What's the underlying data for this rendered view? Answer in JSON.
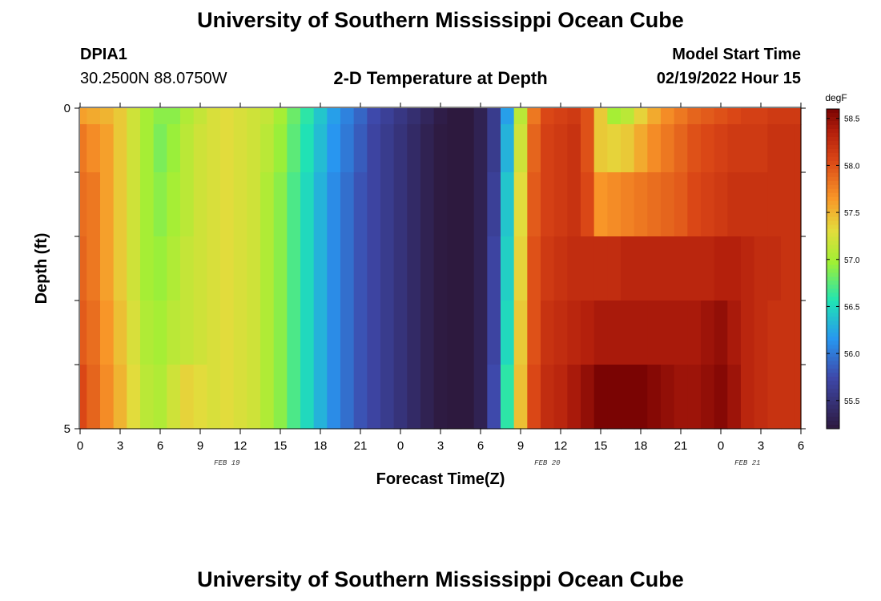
{
  "header": {
    "title": "University of Southern Mississippi Ocean Cube",
    "station_id": "DPIA1",
    "coordinates": "30.2500N  88.0750W",
    "plot_title": "2-D Temperature at Depth",
    "model_label": "Model Start Time",
    "model_time": "02/19/2022 Hour 15",
    "footer_title": "University of Southern Mississippi Ocean Cube"
  },
  "chart_data": {
    "type": "heatmap",
    "title": "2-D Temperature at Depth",
    "xlabel": "Forecast Time(Z)",
    "ylabel": "Depth (ft)",
    "x_ticks": [
      "0",
      "3",
      "6",
      "9",
      "12",
      "15",
      "18",
      "21",
      "0",
      "3",
      "6",
      "9",
      "12",
      "15",
      "18",
      "21",
      "0",
      "3",
      "6"
    ],
    "y_ticks": [
      "0",
      "5"
    ],
    "ylim": [
      0,
      5
    ],
    "date_labels": [
      {
        "label": "FEB 19",
        "at_hour": 11
      },
      {
        "label": "FEB 20",
        "at_hour": 35
      },
      {
        "label": "FEB 21",
        "at_hour": 50
      }
    ],
    "colorbar": {
      "unit": "degF",
      "range": [
        55.2,
        58.6
      ],
      "ticks": [
        "58.5",
        "58.0",
        "57.5",
        "57.0",
        "56.5",
        "56.0",
        "55.5"
      ],
      "tick_values": [
        58.5,
        58.0,
        57.5,
        57.0,
        56.5,
        56.0,
        55.5
      ]
    },
    "depth_levels_ft": [
      0.0,
      0.5,
      1.5,
      2.5,
      3.5,
      4.5
    ],
    "hours": [
      0,
      1,
      2,
      3,
      4,
      5,
      6,
      7,
      8,
      9,
      10,
      11,
      12,
      13,
      14,
      15,
      16,
      17,
      18,
      19,
      20,
      21,
      22,
      23,
      24,
      25,
      26,
      27,
      28,
      29,
      30,
      31,
      32,
      33,
      34,
      35,
      36,
      37,
      38,
      39,
      40,
      41,
      42,
      43,
      44,
      45,
      46,
      47,
      48,
      49,
      50,
      51,
      52,
      53,
      54
    ],
    "values": [
      [
        57.6,
        57.55,
        57.5,
        57.4,
        57.2,
        57.0,
        56.9,
        56.9,
        57.05,
        57.15,
        57.25,
        57.3,
        57.25,
        57.2,
        57.15,
        57.0,
        56.8,
        56.6,
        56.4,
        56.2,
        56.05,
        55.9,
        55.75,
        55.65,
        55.55,
        55.45,
        55.35,
        55.25,
        55.2,
        55.2,
        55.3,
        55.6,
        56.2,
        57.1,
        57.8,
        58.05,
        58.1,
        58.15,
        58.0,
        57.4,
        57.0,
        57.1,
        57.35,
        57.55,
        57.7,
        57.8,
        57.9,
        57.95,
        58.0,
        58.05,
        58.1,
        58.1,
        58.15,
        58.15,
        58.15
      ],
      [
        57.8,
        57.7,
        57.6,
        57.4,
        57.2,
        57.0,
        56.85,
        56.95,
        57.1,
        57.2,
        57.25,
        57.3,
        57.25,
        57.2,
        57.1,
        56.95,
        56.75,
        56.55,
        56.35,
        56.15,
        56.0,
        55.85,
        55.7,
        55.6,
        55.5,
        55.4,
        55.3,
        55.22,
        55.2,
        55.2,
        55.3,
        55.6,
        56.3,
        57.2,
        57.9,
        58.1,
        58.15,
        58.2,
        58.0,
        57.4,
        57.35,
        57.4,
        57.55,
        57.7,
        57.8,
        57.9,
        58.0,
        58.05,
        58.1,
        58.15,
        58.15,
        58.15,
        58.2,
        58.2,
        58.2
      ],
      [
        57.85,
        57.8,
        57.6,
        57.4,
        57.2,
        57.0,
        56.9,
        57.0,
        57.1,
        57.2,
        57.25,
        57.3,
        57.25,
        57.2,
        57.05,
        56.9,
        56.7,
        56.5,
        56.3,
        56.1,
        55.95,
        55.8,
        55.7,
        55.6,
        55.5,
        55.4,
        55.3,
        55.22,
        55.2,
        55.2,
        55.3,
        55.65,
        56.4,
        57.3,
        57.95,
        58.1,
        58.15,
        58.2,
        58.05,
        57.65,
        57.7,
        57.75,
        57.8,
        57.85,
        57.9,
        57.95,
        58.05,
        58.1,
        58.15,
        58.2,
        58.2,
        58.2,
        58.2,
        58.2,
        58.2
      ],
      [
        57.9,
        57.8,
        57.6,
        57.4,
        57.2,
        57.0,
        56.95,
        57.05,
        57.15,
        57.2,
        57.25,
        57.3,
        57.25,
        57.2,
        57.05,
        56.9,
        56.7,
        56.5,
        56.3,
        56.1,
        55.95,
        55.8,
        55.7,
        55.6,
        55.5,
        55.4,
        55.3,
        55.22,
        55.2,
        55.2,
        55.3,
        55.7,
        56.45,
        57.35,
        58.0,
        58.15,
        58.2,
        58.25,
        58.25,
        58.25,
        58.25,
        58.3,
        58.3,
        58.3,
        58.3,
        58.3,
        58.3,
        58.3,
        58.35,
        58.35,
        58.3,
        58.25,
        58.25,
        58.2,
        58.2
      ],
      [
        57.95,
        57.85,
        57.65,
        57.45,
        57.25,
        57.05,
        57.0,
        57.1,
        57.15,
        57.2,
        57.25,
        57.3,
        57.25,
        57.2,
        57.05,
        56.9,
        56.7,
        56.5,
        56.3,
        56.1,
        55.95,
        55.8,
        55.7,
        55.6,
        55.5,
        55.4,
        55.3,
        55.22,
        55.2,
        55.2,
        55.3,
        55.7,
        56.5,
        57.4,
        58.0,
        58.2,
        58.25,
        58.3,
        58.35,
        58.4,
        58.4,
        58.4,
        58.4,
        58.4,
        58.4,
        58.4,
        58.4,
        58.45,
        58.5,
        58.4,
        58.3,
        58.25,
        58.2,
        58.2,
        58.2
      ],
      [
        58.05,
        57.9,
        57.7,
        57.5,
        57.3,
        57.1,
        57.05,
        57.2,
        57.35,
        57.3,
        57.25,
        57.3,
        57.25,
        57.2,
        57.05,
        56.9,
        56.7,
        56.5,
        56.3,
        56.1,
        55.95,
        55.8,
        55.7,
        55.6,
        55.5,
        55.4,
        55.3,
        55.22,
        55.2,
        55.2,
        55.3,
        55.75,
        56.6,
        57.45,
        58.05,
        58.25,
        58.3,
        58.4,
        58.5,
        58.6,
        58.65,
        58.65,
        58.6,
        58.55,
        58.5,
        58.45,
        58.45,
        58.5,
        58.55,
        58.45,
        58.3,
        58.25,
        58.2,
        58.2,
        58.2
      ]
    ]
  }
}
